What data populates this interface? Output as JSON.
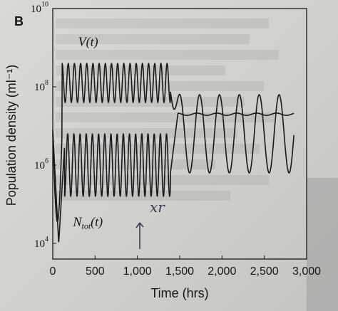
{
  "panel_label": "B",
  "handwritten_note": "xr",
  "chart_data": {
    "type": "line",
    "xlabel": "Time (hrs)",
    "ylabel": "Population density (ml⁻¹)",
    "x_ticks": [
      0,
      500,
      1000,
      1500,
      2000,
      2500,
      3000
    ],
    "x_tick_labels": [
      "0",
      "500",
      "1,000",
      "1,500",
      "2,000",
      "2,500",
      "3,000"
    ],
    "xlim": [
      0,
      3000
    ],
    "y_scale": "log",
    "ylim_log10": [
      3.6,
      10
    ],
    "y_ticks": [
      {
        "base": "10",
        "exp": "10",
        "log10": 10
      },
      {
        "base": "10",
        "exp": "8",
        "log10": 8
      },
      {
        "base": "10",
        "exp": "6",
        "log10": 6
      },
      {
        "base": "10",
        "exp": "4",
        "log10": 4
      }
    ],
    "series": [
      {
        "name": "V(t)",
        "name_main": "V(t)",
        "name_sub": "",
        "color": "#1a1a1a",
        "phase1_end": 1390,
        "phase1_period": 73,
        "phase1_log10_range": [
          7.6,
          8.6
        ],
        "phase2_period": 235,
        "phase2_log10_range": [
          5.8,
          7.8
        ],
        "initial_log10": 6.8,
        "min_log10": 4.3
      },
      {
        "name": "N_tot(t)",
        "name_main": "N",
        "name_sub": "tot",
        "name_tail": "(t)",
        "color": "#1a1a1a",
        "phase1_end": 1390,
        "phase1_period": 73,
        "phase1_log10_range": [
          5.2,
          6.8
        ],
        "phase2_log10_level": 7.3,
        "initial_log10": 6.9,
        "min_log10": 4.0
      }
    ]
  }
}
